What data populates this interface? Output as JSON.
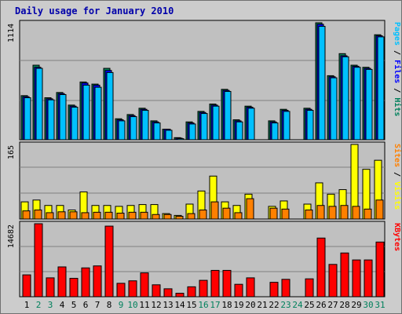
{
  "chart_data": [
    {
      "type": "bar",
      "title": "Daily usage for January 2010",
      "categories": [
        "1",
        "2",
        "3",
        "4",
        "5",
        "6",
        "7",
        "8",
        "9",
        "10",
        "11",
        "12",
        "13",
        "14",
        "15",
        "16",
        "17",
        "18",
        "19",
        "20",
        "21",
        "22",
        "23",
        "24",
        "25",
        "26",
        "27",
        "28",
        "29",
        "30",
        "31"
      ],
      "weekend_days": [
        "2",
        "3",
        "9",
        "10",
        "16",
        "17",
        "23",
        "24",
        "30",
        "31"
      ],
      "ylabel_parts": [
        {
          "text": "Pages",
          "color": "#00c0ff"
        },
        {
          "text": " / ",
          "color": "#000000"
        },
        {
          "text": "Files",
          "color": "#0000ff"
        },
        {
          "text": " / ",
          "color": "#000000"
        },
        {
          "text": "Hits",
          "color": "#00805c"
        }
      ],
      "ymax_label": "1114",
      "ylim": [
        0,
        1114
      ],
      "series": [
        {
          "name": "Hits",
          "color": "#00805c",
          "values": [
            420,
            710,
            400,
            450,
            330,
            550,
            530,
            680,
            200,
            240,
            300,
            180,
            100,
            20,
            170,
            270,
            340,
            480,
            190,
            320,
            0,
            180,
            290,
            0,
            300,
            1114,
            610,
            820,
            710,
            690,
            1000
          ]
        },
        {
          "name": "Files",
          "color": "#0000ff",
          "values": [
            410,
            690,
            390,
            440,
            320,
            540,
            520,
            660,
            190,
            230,
            290,
            170,
            100,
            15,
            160,
            260,
            330,
            470,
            180,
            310,
            0,
            170,
            280,
            0,
            290,
            1100,
            600,
            800,
            700,
            680,
            990
          ]
        },
        {
          "name": "Pages",
          "color": "#00c0ff",
          "values": [
            400,
            680,
            380,
            430,
            310,
            520,
            500,
            640,
            180,
            220,
            280,
            160,
            90,
            10,
            150,
            250,
            320,
            460,
            170,
            300,
            0,
            160,
            270,
            0,
            280,
            1080,
            590,
            790,
            690,
            670,
            980
          ]
        }
      ]
    },
    {
      "type": "bar",
      "ylabel_parts": [
        {
          "text": "Sites",
          "color": "#ff8000"
        },
        {
          "text": " / ",
          "color": "#000000"
        },
        {
          "text": "Visits",
          "color": "#ffff00"
        }
      ],
      "ymax_label": "165",
      "ylim": [
        0,
        165
      ],
      "series": [
        {
          "name": "Visits",
          "color": "#ffff00",
          "values": [
            38,
            42,
            30,
            30,
            20,
            60,
            30,
            30,
            28,
            30,
            32,
            32,
            12,
            8,
            33,
            62,
            95,
            38,
            30,
            55,
            0,
            28,
            40,
            0,
            33,
            80,
            55,
            65,
            165,
            110,
            130
          ]
        },
        {
          "name": "Sites",
          "color": "#ff8000",
          "values": [
            18,
            20,
            14,
            16,
            16,
            14,
            15,
            15,
            13,
            15,
            15,
            10,
            10,
            6,
            12,
            20,
            38,
            24,
            14,
            45,
            0,
            24,
            22,
            0,
            20,
            30,
            28,
            30,
            28,
            22,
            42
          ]
        }
      ]
    },
    {
      "type": "bar",
      "ylabel_parts": [
        {
          "text": "KBytes",
          "color": "#ff0000"
        }
      ],
      "ymax_label": "14682",
      "ylim": [
        0,
        14682
      ],
      "series": [
        {
          "name": "KBytes",
          "color": "#ff0000",
          "values": [
            4400,
            14682,
            3800,
            6000,
            3700,
            5800,
            6200,
            14200,
            2700,
            3200,
            4800,
            2400,
            1600,
            700,
            2000,
            3300,
            5300,
            5300,
            2500,
            3800,
            0,
            2900,
            3500,
            0,
            3600,
            11800,
            6500,
            8800,
            7400,
            7400,
            11000
          ]
        }
      ]
    }
  ]
}
